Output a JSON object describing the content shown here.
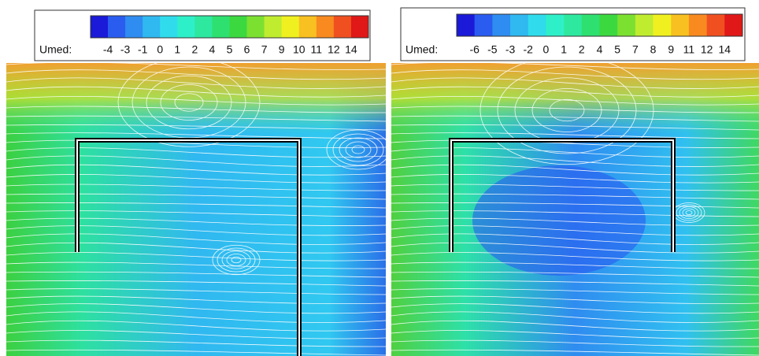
{
  "panels": [
    {
      "legend": {
        "label": "Umed:",
        "ticks": [
          -4,
          -3,
          -1,
          0,
          1,
          2,
          4,
          5,
          6,
          7,
          9,
          10,
          11,
          12,
          14
        ]
      }
    },
    {
      "legend": {
        "label": "Umed:",
        "ticks": [
          -6,
          -5,
          -3,
          -2,
          0,
          1,
          2,
          4,
          5,
          7,
          8,
          9,
          11,
          12,
          14
        ]
      }
    }
  ],
  "colormap": [
    "#1a1ad8",
    "#2a5cf0",
    "#2f8cf0",
    "#30b8f0",
    "#30dcec",
    "#2ef0c8",
    "#2ee8a0",
    "#2ee070",
    "#3cd840",
    "#7ce030",
    "#c0ec30",
    "#f0f020",
    "#f8c020",
    "#f88a20",
    "#f05020",
    "#e01818"
  ]
}
